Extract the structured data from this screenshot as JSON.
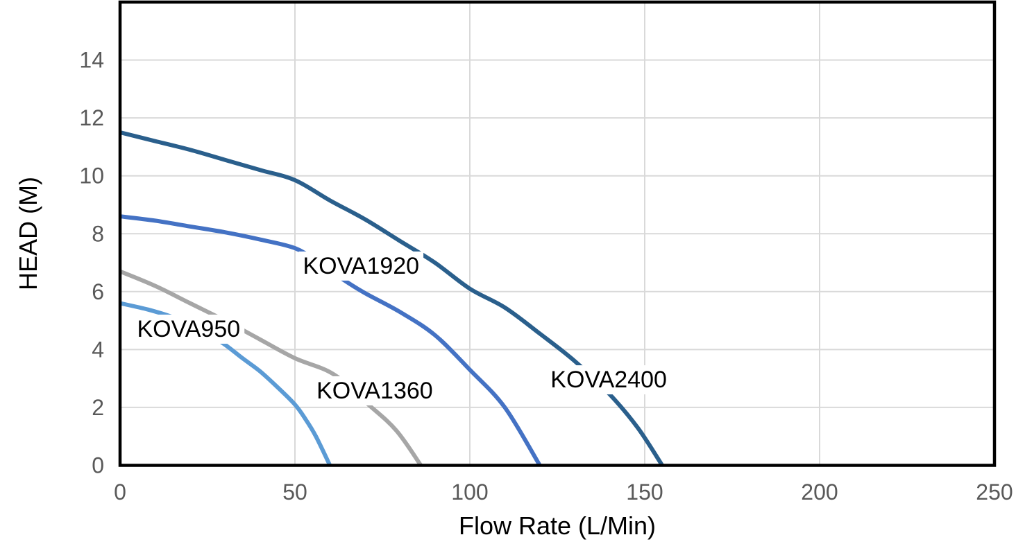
{
  "page": {
    "background_color": "#ffffff"
  },
  "chart_data": {
    "type": "line",
    "title": "",
    "xlabel": "Flow Rate (L/Min)",
    "ylabel": "HEAD (M)",
    "xlim": [
      0,
      250
    ],
    "ylim": [
      0,
      16
    ],
    "xticks": [
      0,
      50,
      100,
      150,
      200,
      250
    ],
    "yticks": [
      0,
      2,
      4,
      6,
      8,
      10,
      12,
      14
    ],
    "grid": true,
    "grid_color": "#d9d9d9",
    "plot_border_color": "#000000",
    "tick_label_color": "#595959",
    "axis_title_color": "#000000",
    "legend_position": "inline-curve-labels",
    "series": [
      {
        "name": "KOVA950",
        "color": "#5b9bd5",
        "points": [
          [
            0,
            5.6
          ],
          [
            8,
            5.38
          ],
          [
            15,
            5.12
          ],
          [
            22,
            4.75
          ],
          [
            29,
            4.25
          ],
          [
            35,
            3.7
          ],
          [
            40,
            3.25
          ],
          [
            45,
            2.7
          ],
          [
            50,
            2.1
          ],
          [
            53,
            1.6
          ],
          [
            56,
            1.0
          ],
          [
            60,
            0
          ]
        ],
        "label": {
          "text": "KOVA950",
          "x": 19.6,
          "y": 4.44
        }
      },
      {
        "name": "KOVA1360",
        "color": "#a6a6a6",
        "points": [
          [
            0,
            6.7
          ],
          [
            10,
            6.2
          ],
          [
            20,
            5.6
          ],
          [
            30,
            5.0
          ],
          [
            40,
            4.35
          ],
          [
            50,
            3.7
          ],
          [
            61,
            3.15
          ],
          [
            71,
            2.1
          ],
          [
            79,
            1.2
          ],
          [
            86,
            0
          ]
        ],
        "label": {
          "text": "KOVA1360",
          "x": 72.8,
          "y": 2.31
        }
      },
      {
        "name": "KOVA1920",
        "color": "#4472c4",
        "points": [
          [
            0,
            8.6
          ],
          [
            10,
            8.45
          ],
          [
            20,
            8.25
          ],
          [
            30,
            8.05
          ],
          [
            40,
            7.8
          ],
          [
            50,
            7.5
          ],
          [
            57,
            7.0
          ],
          [
            64,
            6.4
          ],
          [
            70,
            5.95
          ],
          [
            80,
            5.3
          ],
          [
            90,
            4.5
          ],
          [
            100,
            3.3
          ],
          [
            110,
            2.0
          ],
          [
            120,
            0
          ]
        ],
        "label": {
          "text": "KOVA1920",
          "x": 68.9,
          "y": 6.62
        }
      },
      {
        "name": "KOVA2400",
        "color": "#2a5f8c",
        "points": [
          [
            0,
            11.5
          ],
          [
            10,
            11.2
          ],
          [
            20,
            10.9
          ],
          [
            30,
            10.55
          ],
          [
            40,
            10.2
          ],
          [
            50,
            9.85
          ],
          [
            60,
            9.15
          ],
          [
            70,
            8.5
          ],
          [
            80,
            7.75
          ],
          [
            90,
            7.0
          ],
          [
            100,
            6.1
          ],
          [
            110,
            5.45
          ],
          [
            120,
            4.55
          ],
          [
            130,
            3.6
          ],
          [
            140,
            2.45
          ],
          [
            148,
            1.3
          ],
          [
            155,
            0
          ]
        ],
        "label": {
          "text": "KOVA2400",
          "x": 139.7,
          "y": 2.69
        }
      }
    ]
  }
}
